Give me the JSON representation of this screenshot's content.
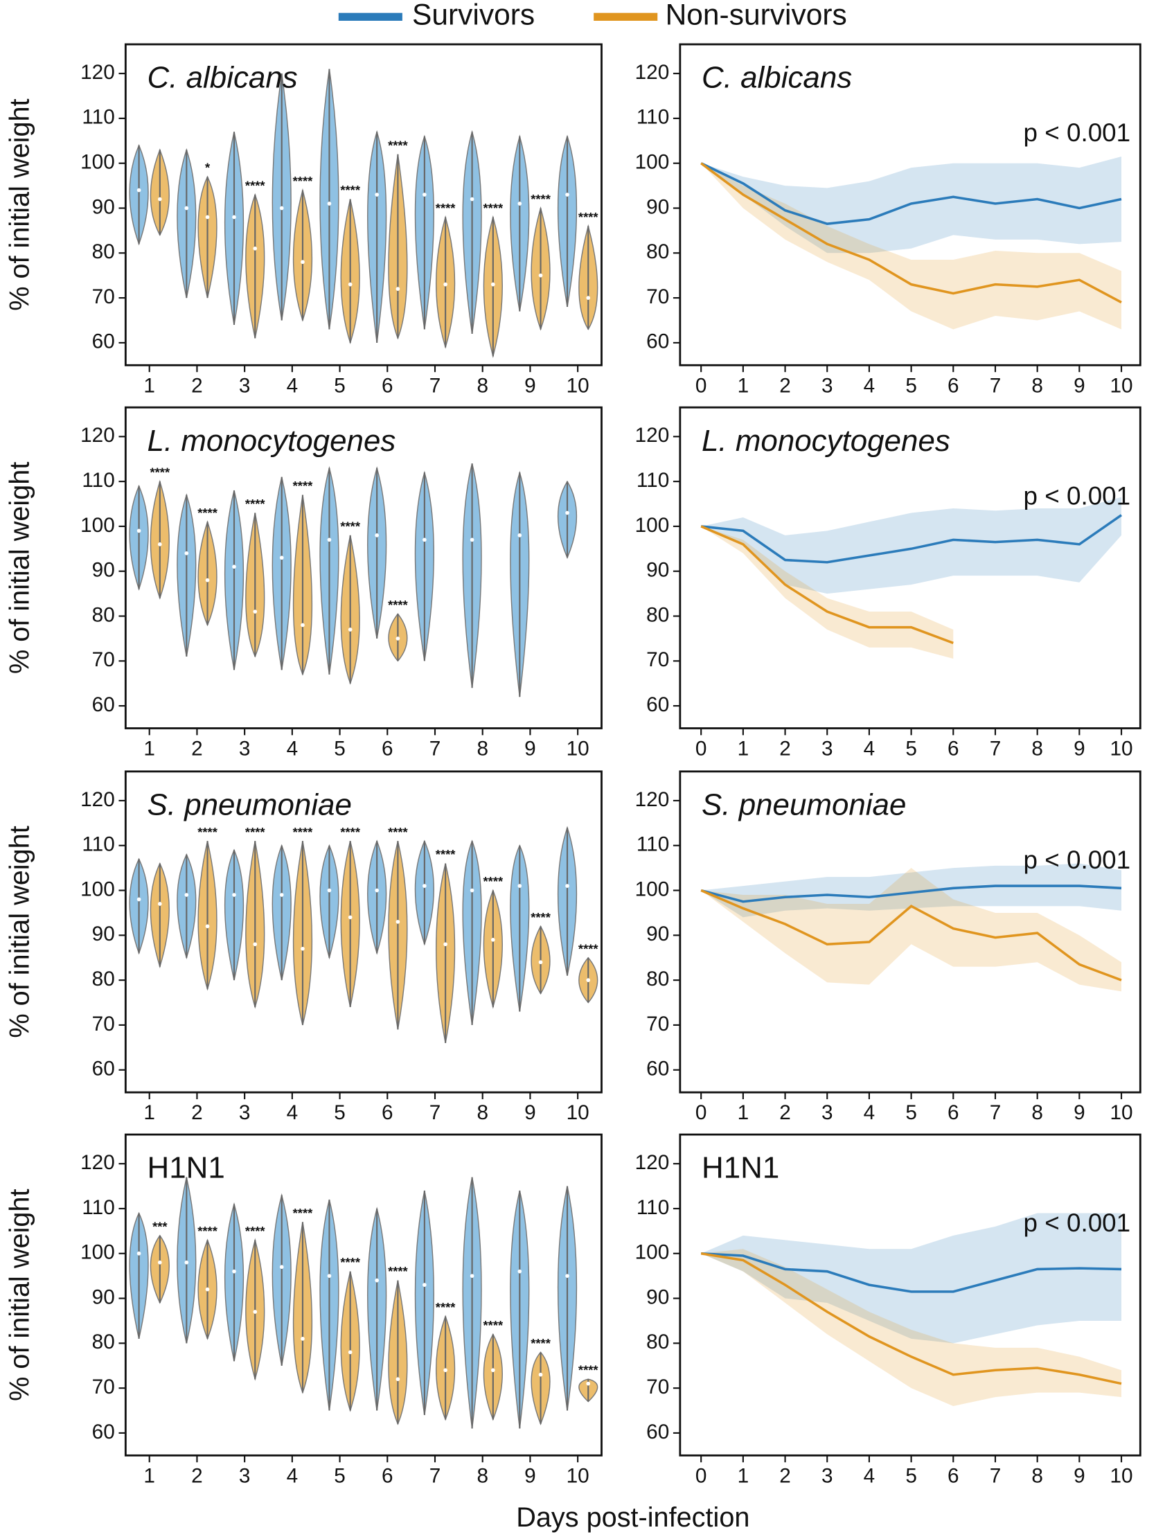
{
  "xlabel": "Days post-infection",
  "chart_data": [
    {
      "type": "violin",
      "title": "C. albicans",
      "title_italic": true,
      "ylabel": "% of initial weight",
      "categories": [
        "1",
        "2",
        "3",
        "4",
        "5",
        "6",
        "7",
        "8",
        "9",
        "10"
      ],
      "ylim": [
        55,
        126.5
      ],
      "yticks": [
        60,
        70,
        80,
        90,
        100,
        110,
        120
      ],
      "series": [
        {
          "name": "Survivors",
          "color": "#2b7bba",
          "fill": "#8fc1e3",
          "min": [
            82,
            70,
            64,
            65,
            63,
            60,
            63,
            62,
            67,
            68
          ],
          "median": [
            94,
            90,
            88,
            90,
            91,
            93,
            93,
            92,
            91,
            93
          ],
          "max": [
            104,
            103,
            107,
            120,
            121,
            107,
            106,
            107,
            106,
            106
          ]
        },
        {
          "name": "Non-survivors",
          "color": "#e0951f",
          "fill": "#ecbd6c",
          "min": [
            84,
            70,
            61,
            65,
            60,
            61,
            59,
            57,
            63,
            63
          ],
          "median": [
            92,
            88,
            81,
            78,
            73,
            72,
            73,
            73,
            75,
            70
          ],
          "max": [
            103,
            97,
            93,
            94,
            92,
            102,
            88,
            88,
            90,
            86
          ]
        }
      ],
      "annotations": [
        null,
        "*",
        "****",
        "****",
        "****",
        "****",
        "****",
        "****",
        "****",
        "****"
      ]
    },
    {
      "type": "line",
      "title": "C. albicans",
      "title_italic": true,
      "annotation": "p < 0.001",
      "x": [
        0,
        1,
        2,
        3,
        4,
        5,
        6,
        7,
        8,
        9,
        10
      ],
      "xlim": [
        -0.5,
        10.45
      ],
      "xticks": [
        0,
        1,
        2,
        3,
        4,
        5,
        6,
        7,
        8,
        9,
        10
      ],
      "ylim": [
        55,
        126.5
      ],
      "yticks": [
        60,
        70,
        80,
        90,
        100,
        110,
        120
      ],
      "series": [
        {
          "name": "Survivors",
          "color": "#2b7bba",
          "values": [
            100,
            95.5,
            89.5,
            86.5,
            87.5,
            91,
            92.5,
            91,
            92,
            90,
            92
          ],
          "lower": [
            100,
            93,
            86,
            80,
            80,
            81,
            84,
            83,
            83,
            82,
            82.5
          ],
          "upper": [
            100,
            97,
            95,
            94.5,
            96,
            99,
            100,
            100,
            100,
            99,
            101.5
          ]
        },
        {
          "name": "Non-survivors",
          "color": "#e0951f",
          "values": [
            100,
            93,
            87.5,
            82,
            78.5,
            73,
            71,
            73,
            72.5,
            74,
            69
          ],
          "lower": [
            100,
            90,
            83,
            78,
            74,
            67,
            63,
            66,
            65,
            67,
            63
          ],
          "upper": [
            100,
            95,
            91,
            86,
            82,
            78.5,
            78.5,
            80.5,
            80,
            80,
            76
          ]
        }
      ]
    },
    {
      "type": "violin",
      "title": "L. monocytogenes",
      "title_italic": true,
      "ylabel": "% of initial weight",
      "categories": [
        "1",
        "2",
        "3",
        "4",
        "5",
        "6",
        "7",
        "8",
        "9",
        "10"
      ],
      "ylim": [
        55,
        126.5
      ],
      "yticks": [
        60,
        70,
        80,
        90,
        100,
        110,
        120
      ],
      "series": [
        {
          "name": "Survivors",
          "color": "#2b7bba",
          "fill": "#8fc1e3",
          "min": [
            86,
            71,
            68,
            68,
            67,
            75,
            70,
            64,
            62,
            93
          ],
          "median": [
            99,
            94,
            91,
            93,
            97,
            98,
            97,
            97,
            98,
            103
          ],
          "max": [
            109,
            107,
            108,
            111,
            113,
            113,
            112,
            114,
            112,
            110
          ]
        },
        {
          "name": "Non-survivors",
          "color": "#e0951f",
          "fill": "#ecbd6c",
          "min": [
            84,
            78,
            71,
            67,
            65,
            70,
            null,
            null,
            null,
            null
          ],
          "median": [
            96,
            88,
            81,
            78,
            77,
            75,
            null,
            null,
            null,
            null
          ],
          "max": [
            110,
            101,
            103,
            107,
            98,
            80.5,
            null,
            null,
            null,
            null
          ]
        }
      ],
      "annotations": [
        "****",
        "****",
        "****",
        "****",
        "****",
        "****",
        null,
        null,
        null,
        null
      ]
    },
    {
      "type": "line",
      "title": "L. monocytogenes",
      "title_italic": true,
      "annotation": "p < 0.001",
      "x": [
        0,
        1,
        2,
        3,
        4,
        5,
        6,
        7,
        8,
        9,
        10
      ],
      "xlim": [
        -0.5,
        10.45
      ],
      "xticks": [
        0,
        1,
        2,
        3,
        4,
        5,
        6,
        7,
        8,
        9,
        10
      ],
      "ylim": [
        55,
        126.5
      ],
      "yticks": [
        60,
        70,
        80,
        90,
        100,
        110,
        120
      ],
      "series": [
        {
          "name": "Survivors",
          "color": "#2b7bba",
          "values": [
            100,
            99,
            92.5,
            92,
            93.5,
            95,
            97,
            96.5,
            97,
            96,
            102.5
          ],
          "lower": [
            100,
            96,
            87,
            85,
            86,
            87,
            89,
            89,
            89,
            87.5,
            98
          ],
          "upper": [
            100,
            102,
            98,
            99,
            101,
            103,
            104,
            103.5,
            104,
            104,
            106.5
          ]
        },
        {
          "name": "Non-survivors",
          "color": "#e0951f",
          "values": [
            100,
            96,
            87,
            81,
            77.5,
            77.5,
            74,
            null,
            null,
            null,
            null
          ],
          "lower": [
            100,
            94,
            84,
            77,
            73,
            73,
            70.5,
            null,
            null,
            null,
            null
          ],
          "upper": [
            100,
            97,
            90,
            84,
            81,
            81,
            77,
            null,
            null,
            null,
            null
          ]
        }
      ]
    },
    {
      "type": "violin",
      "title": "S. pneumoniae",
      "title_italic": true,
      "ylabel": "% of initial weight",
      "categories": [
        "1",
        "2",
        "3",
        "4",
        "5",
        "6",
        "7",
        "8",
        "9",
        "10"
      ],
      "ylim": [
        55,
        126.5
      ],
      "yticks": [
        60,
        70,
        80,
        90,
        100,
        110,
        120
      ],
      "series": [
        {
          "name": "Survivors",
          "color": "#2b7bba",
          "fill": "#8fc1e3",
          "min": [
            86,
            85,
            80,
            80,
            85,
            86,
            88,
            70,
            73,
            81
          ],
          "median": [
            98,
            99,
            99,
            99,
            100,
            100,
            101,
            100,
            101,
            101
          ],
          "max": [
            107,
            108,
            109,
            110,
            110,
            111,
            111,
            111,
            110,
            114
          ]
        },
        {
          "name": "Non-survivors",
          "color": "#e0951f",
          "fill": "#ecbd6c",
          "min": [
            83,
            78,
            74,
            70,
            74,
            69,
            66,
            74,
            77,
            75
          ],
          "median": [
            97,
            92,
            88,
            87,
            94,
            93,
            88,
            89,
            84,
            80
          ],
          "max": [
            106,
            111,
            111,
            111,
            111,
            111,
            106,
            100,
            92,
            85
          ]
        }
      ],
      "annotations": [
        null,
        "****",
        "****",
        "****",
        "****",
        "****",
        "****",
        "****",
        "****",
        "****"
      ]
    },
    {
      "type": "line",
      "title": "S. pneumoniae",
      "title_italic": true,
      "annotation": "p < 0.001",
      "x": [
        0,
        1,
        2,
        3,
        4,
        5,
        6,
        7,
        8,
        9,
        10
      ],
      "xlim": [
        -0.5,
        10.45
      ],
      "xticks": [
        0,
        1,
        2,
        3,
        4,
        5,
        6,
        7,
        8,
        9,
        10
      ],
      "ylim": [
        55,
        126.5
      ],
      "yticks": [
        60,
        70,
        80,
        90,
        100,
        110,
        120
      ],
      "series": [
        {
          "name": "Survivors",
          "color": "#2b7bba",
          "values": [
            100,
            97.5,
            98.5,
            99,
            98.5,
            99.5,
            100.5,
            101,
            101,
            101,
            100.5
          ],
          "lower": [
            100,
            94,
            95.5,
            96,
            95.5,
            96,
            96.5,
            96.5,
            96.5,
            96.5,
            95.5
          ],
          "upper": [
            100,
            101,
            102,
            103,
            103,
            104,
            105,
            105.5,
            105.5,
            106,
            104.5
          ]
        },
        {
          "name": "Non-survivors",
          "color": "#e0951f",
          "values": [
            100,
            96,
            92.5,
            88,
            88.5,
            96.5,
            91.5,
            89.5,
            90.5,
            83.5,
            80
          ],
          "lower": [
            100,
            93,
            86,
            79.5,
            79,
            88,
            83,
            83,
            84,
            79,
            77.5
          ],
          "upper": [
            100,
            99,
            99,
            97,
            97,
            105,
            98,
            95,
            95,
            90,
            84
          ]
        }
      ]
    },
    {
      "type": "violin",
      "title": "H1N1",
      "title_italic": false,
      "ylabel": "% of initial weight",
      "categories": [
        "1",
        "2",
        "3",
        "4",
        "5",
        "6",
        "7",
        "8",
        "9",
        "10"
      ],
      "ylim": [
        55,
        126.5
      ],
      "yticks": [
        60,
        70,
        80,
        90,
        100,
        110,
        120
      ],
      "series": [
        {
          "name": "Survivors",
          "color": "#2b7bba",
          "fill": "#8fc1e3",
          "min": [
            81,
            80,
            76,
            75,
            65,
            65,
            64,
            61,
            61,
            65
          ],
          "median": [
            100,
            98,
            96,
            97,
            95,
            94,
            93,
            95,
            96,
            95
          ],
          "max": [
            109,
            117,
            111,
            113,
            112,
            110,
            114,
            117,
            114,
            115
          ]
        },
        {
          "name": "Non-survivors",
          "color": "#e0951f",
          "fill": "#ecbd6c",
          "min": [
            89,
            81,
            72,
            69,
            65,
            62,
            63,
            63,
            62,
            67
          ],
          "median": [
            98,
            92,
            87,
            81,
            78,
            72,
            74,
            74,
            73,
            71
          ],
          "max": [
            104,
            103,
            103,
            107,
            96,
            94,
            86,
            82,
            78,
            72
          ]
        }
      ],
      "annotations": [
        "***",
        "****",
        "****",
        "****",
        "****",
        "****",
        "****",
        "****",
        "****",
        "****"
      ]
    },
    {
      "type": "line",
      "title": "H1N1",
      "title_italic": false,
      "annotation": "p < 0.001",
      "x": [
        0,
        1,
        2,
        3,
        4,
        5,
        6,
        7,
        8,
        9,
        10
      ],
      "xlim": [
        -0.5,
        10.45
      ],
      "xticks": [
        0,
        1,
        2,
        3,
        4,
        5,
        6,
        7,
        8,
        9,
        10
      ],
      "ylim": [
        55,
        126.5
      ],
      "yticks": [
        60,
        70,
        80,
        90,
        100,
        110,
        120
      ],
      "series": [
        {
          "name": "Survivors",
          "color": "#2b7bba",
          "values": [
            100,
            99.5,
            96.5,
            96,
            93,
            91.5,
            91.5,
            94,
            96.5,
            96.7,
            96.5
          ],
          "lower": [
            100,
            96,
            90,
            89,
            85,
            81,
            80,
            82,
            84,
            85,
            85
          ],
          "upper": [
            100,
            104,
            103,
            102,
            101,
            101,
            104,
            106,
            109,
            109,
            109
          ]
        },
        {
          "name": "Non-survivors",
          "color": "#e0951f",
          "values": [
            100,
            98.5,
            93,
            87,
            81.5,
            77,
            73,
            74,
            74.5,
            73,
            71
          ],
          "lower": [
            100,
            96,
            89,
            82,
            76,
            70,
            66,
            68,
            69,
            69,
            68
          ],
          "upper": [
            100,
            101,
            97,
            92,
            87,
            83,
            80,
            79,
            79,
            77,
            74
          ]
        }
      ]
    }
  ]
}
